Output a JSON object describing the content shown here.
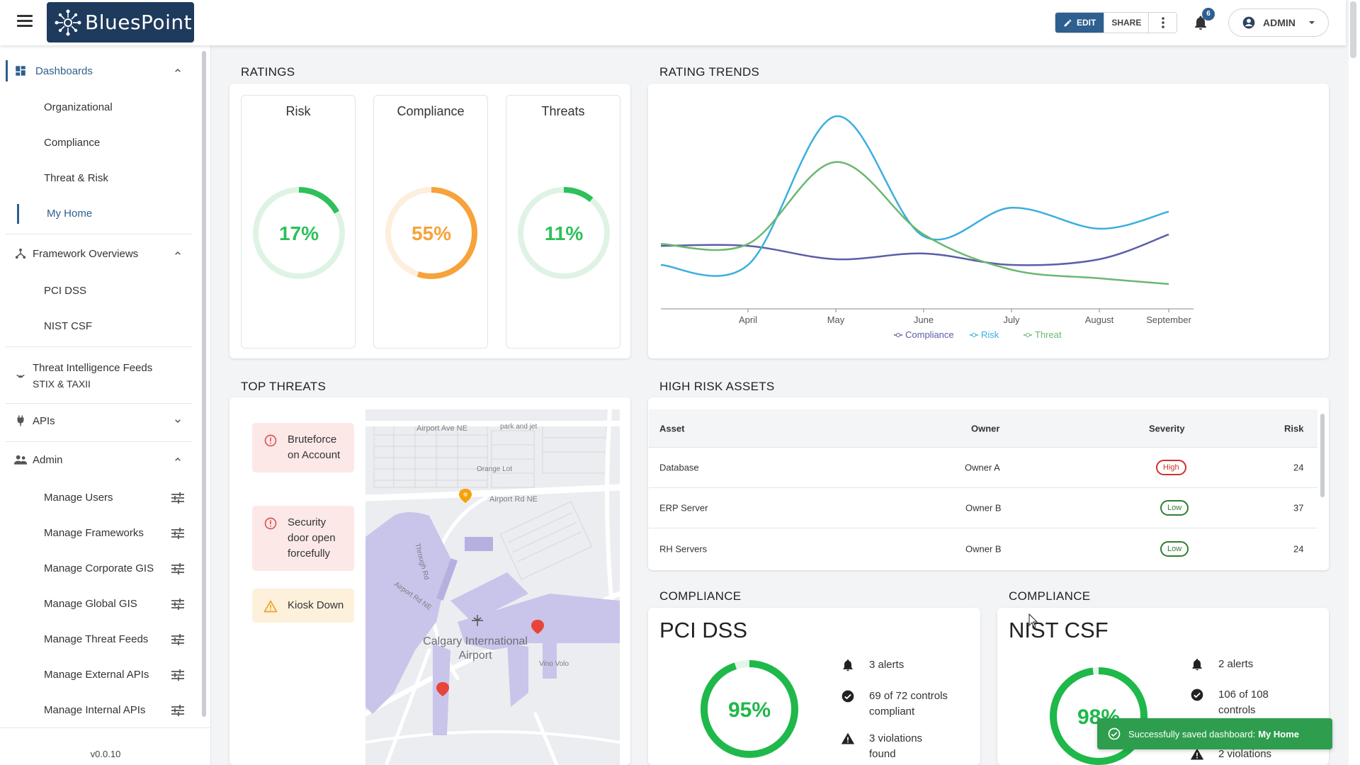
{
  "header": {
    "brand": "BluesPoint",
    "edit_label": "EDIT",
    "share_label": "SHARE",
    "notification_count": "6",
    "user_label": "ADMIN"
  },
  "sidebar": {
    "dashboards": "Dashboards",
    "dashboard_items": [
      "Organizational",
      "Compliance",
      "Threat & Risk",
      "My Home"
    ],
    "framework_overviews": "Framework Overviews",
    "framework_items": [
      "PCI DSS",
      "NIST CSF"
    ],
    "threat_feeds_line1": "Threat Intelligence Feeds",
    "threat_feeds_line2": "STIX & TAXII",
    "apis": "APIs",
    "admin": "Admin",
    "admin_items": [
      "Manage Users",
      "Manage Frameworks",
      "Manage Corporate GIS",
      "Manage Global GIS",
      "Manage Threat Feeds",
      "Manage External APIs",
      "Manage Internal APIs"
    ],
    "version": "v0.0.10"
  },
  "ratings": {
    "title": "RATINGS",
    "gauges": [
      {
        "label": "Risk",
        "percent": 17,
        "text": "17%",
        "color": "#2ec05a",
        "track": "#dff3e5"
      },
      {
        "label": "Compliance",
        "percent": 55,
        "text": "55%",
        "color": "#f7a23b",
        "track": "#fdeedd"
      },
      {
        "label": "Threats",
        "percent": 11,
        "text": "11%",
        "color": "#2ec05a",
        "track": "#dff3e5"
      }
    ]
  },
  "rating_trends": {
    "title": "RATING TRENDS",
    "legend": [
      "Compliance",
      "Risk",
      "Threat"
    ]
  },
  "chart_data": {
    "type": "line",
    "x": [
      "April",
      "May",
      "June",
      "July",
      "August",
      "September"
    ],
    "series": [
      {
        "name": "Compliance",
        "color": "#5b5ea6",
        "values": [
          72,
          58,
          64,
          52,
          58,
          84
        ]
      },
      {
        "name": "Risk",
        "color": "#3aaee0",
        "values": [
          52,
          208,
          82,
          112,
          90,
          108
        ]
      },
      {
        "name": "Threat",
        "color": "#6ab86f",
        "values": [
          74,
          160,
          84,
          47,
          38,
          32
        ]
      }
    ],
    "xlabel": "",
    "ylabel": "",
    "legend": "bottom"
  },
  "top_threats": {
    "title": "TOP THREATS",
    "items": [
      {
        "label": "Bruteforce on Account",
        "level": "red"
      },
      {
        "label": "Security door open forcefully",
        "level": "red"
      },
      {
        "label": "Kiosk Down",
        "level": "amber"
      }
    ],
    "map": {
      "labels": [
        "Airport Ave NE",
        "park and jet",
        "Orange Lot",
        "Airport Rd NE",
        "Airport Rd NE",
        "Calgary International",
        "Airport",
        "Vino Volo",
        "Through Rd"
      ]
    }
  },
  "high_risk_assets": {
    "title": "HIGH RISK ASSETS",
    "columns": [
      "Asset",
      "Owner",
      "Severity",
      "Risk"
    ],
    "rows": [
      {
        "asset": "Database",
        "owner": "Owner A",
        "severity": "High",
        "risk": "24"
      },
      {
        "asset": "ERP Server",
        "owner": "Owner B",
        "severity": "Low",
        "risk": "37"
      },
      {
        "asset": "RH Servers",
        "owner": "Owner B",
        "severity": "Low",
        "risk": "24"
      }
    ]
  },
  "compliance_cards": [
    {
      "section": "COMPLIANCE",
      "name": "PCI DSS",
      "percent": 95,
      "text": "95%",
      "alerts": "3 alerts",
      "controls_line1": "69 of 72 controls",
      "controls_line2": "compliant",
      "violations_line1": "3 violations",
      "violations_line2": "found"
    },
    {
      "section": "COMPLIANCE",
      "name": "NIST CSF",
      "percent": 98,
      "text": "98%",
      "alerts": "2 alerts",
      "controls_line1": "106 of 108",
      "controls_line2": "controls",
      "violations_line1": "2 violations",
      "violations_line2": ""
    }
  ],
  "toast": {
    "message": "Successfully saved dashboard:",
    "dashboard": "My Home"
  },
  "colors": {
    "brand": "#1e3a5c",
    "accent": "#2d5f8f",
    "success": "#2e9e4e",
    "gauge_green": "#1fb84a"
  }
}
